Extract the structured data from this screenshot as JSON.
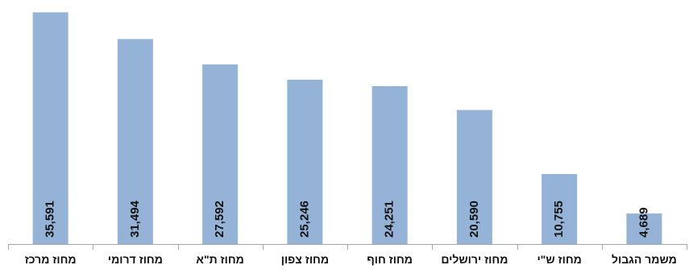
{
  "chart_data": {
    "type": "bar",
    "categories": [
      "מחוז מרכז",
      "מחוז דרומי",
      "מחוז ת\"א",
      "מחוז צפון",
      "מחוז חוף",
      "מחוז ירושלים",
      "מחוז ש\"י",
      "משמר הגבול"
    ],
    "values": [
      35591,
      31494,
      27592,
      25246,
      24251,
      20590,
      10755,
      4689
    ],
    "data_labels": [
      "35,591",
      "31,494",
      "27,592",
      "25,246",
      "24,251",
      "20,590",
      "10,755",
      "4,689"
    ],
    "ylim": [
      0,
      36500
    ],
    "grid": false,
    "legend": "none",
    "bar_color": "#95b3d7",
    "axis_color": "#a6a6a6",
    "text_color": "#111111",
    "value_label_orientation": "vertical"
  }
}
